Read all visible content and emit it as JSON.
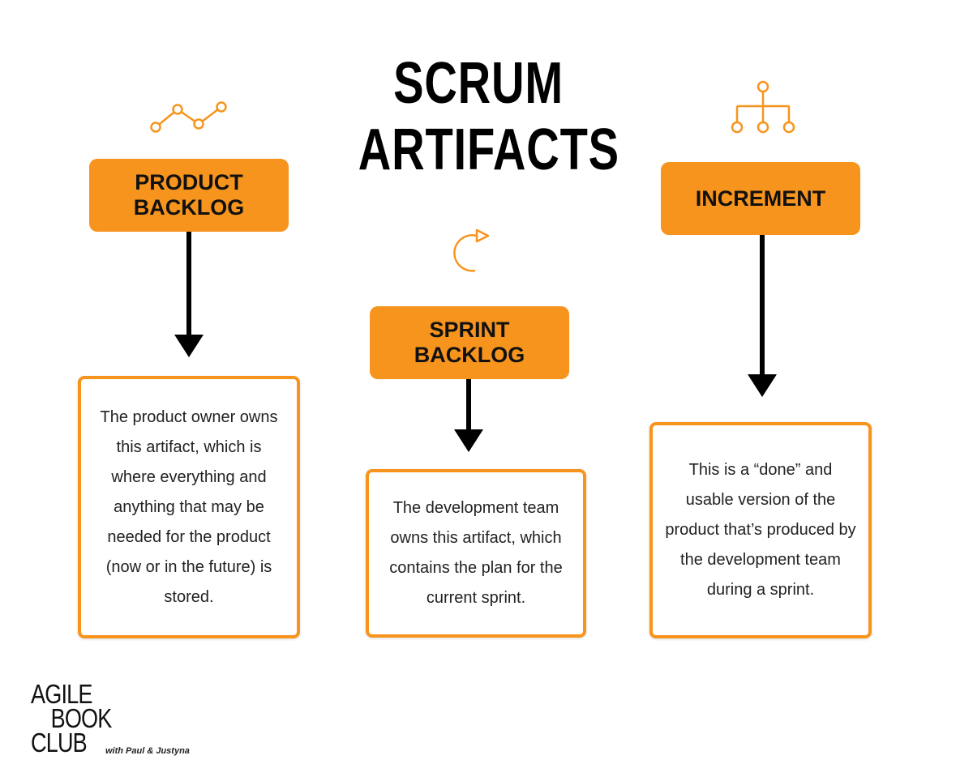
{
  "title": {
    "line1": "SCRUM",
    "line2": "ARTIFACTS"
  },
  "artifacts": [
    {
      "name_line1": "PRODUCT",
      "name_line2": "BACKLOG",
      "icon": "line-chart-icon",
      "description": "The product owner owns this artifact, which is where everything and anything that may be needed for the product (now or in the future) is stored."
    },
    {
      "name_line1": "SPRINT",
      "name_line2": "BACKLOG",
      "icon": "cycle-arrow-icon",
      "description": "The development team owns this artifact, which contains the plan for the current sprint."
    },
    {
      "name_line1": "INCREMENT",
      "name_line2": "",
      "icon": "hierarchy-icon",
      "description": "This is a “done” and usable version of the product that’s produced by the development team during a sprint."
    }
  ],
  "logo": {
    "line1": "AGILE",
    "line2": "BOOK",
    "line3": "CLUB",
    "subtitle": "with Paul & Justyna"
  },
  "colors": {
    "accent": "#f7941d",
    "text": "#111111",
    "arrow": "#000000"
  }
}
